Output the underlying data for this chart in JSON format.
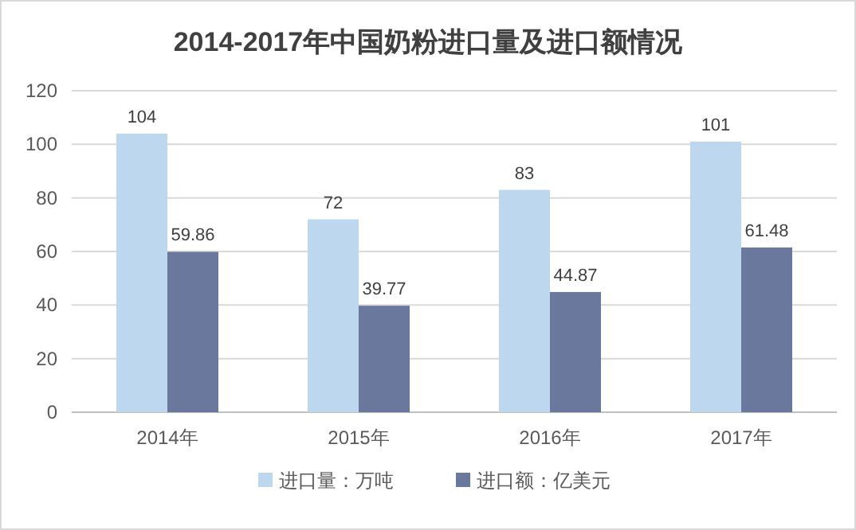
{
  "chart_data": {
    "type": "bar",
    "title": "2014-2017年中国奶粉进口量及进口额情况",
    "categories": [
      "2014年",
      "2015年",
      "2016年",
      "2017年"
    ],
    "series": [
      {
        "name": "进口量：万吨",
        "color": "#bdd7ee",
        "values": [
          104,
          72,
          83,
          101
        ]
      },
      {
        "name": "进口额：亿美元",
        "color": "#6b789e",
        "values": [
          59.86,
          39.77,
          44.87,
          61.48
        ]
      }
    ],
    "ylim": [
      0,
      120
    ],
    "yticks": [
      0,
      20,
      40,
      60,
      80,
      100,
      120
    ],
    "grid": "y",
    "legend": "bottom",
    "data_labels": true
  }
}
